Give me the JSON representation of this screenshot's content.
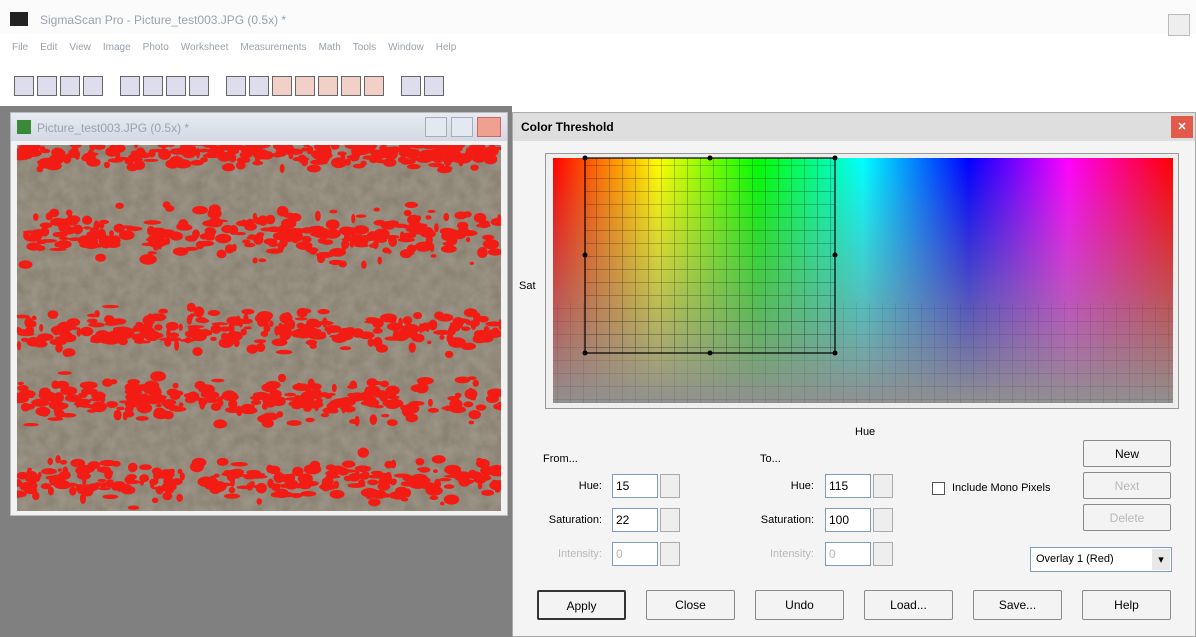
{
  "app": {
    "title": "SigmaScan Pro - Picture_test003.JPG (0.5x) *",
    "menu": [
      "File",
      "Edit",
      "View",
      "Image",
      "Photo",
      "Worksheet",
      "Measurements",
      "Math",
      "Tools",
      "Window",
      "Help"
    ]
  },
  "image_window": {
    "title": "Picture_test003.JPG (0.5x) *"
  },
  "dialog": {
    "title": "Color Threshold",
    "y_axis_label": "Sat",
    "x_axis_label": "Hue",
    "from": {
      "label": "From...",
      "hue_label": "Hue:",
      "hue": 15,
      "saturation_label": "Saturation:",
      "saturation": 22,
      "intensity_label": "Intensity:",
      "intensity": 0
    },
    "to": {
      "label": "To...",
      "hue_label": "Hue:",
      "hue": 115,
      "saturation_label": "Saturation:",
      "saturation": 100,
      "intensity_label": "Intensity:",
      "intensity": 0
    },
    "include_mono": "Include Mono Pixels",
    "side_buttons": [
      "New",
      "Next",
      "Delete"
    ],
    "overlay": "Overlay 1 (Red)",
    "buttons": [
      "Apply",
      "Close",
      "Undo",
      "Load...",
      "Save...",
      "Help"
    ]
  }
}
